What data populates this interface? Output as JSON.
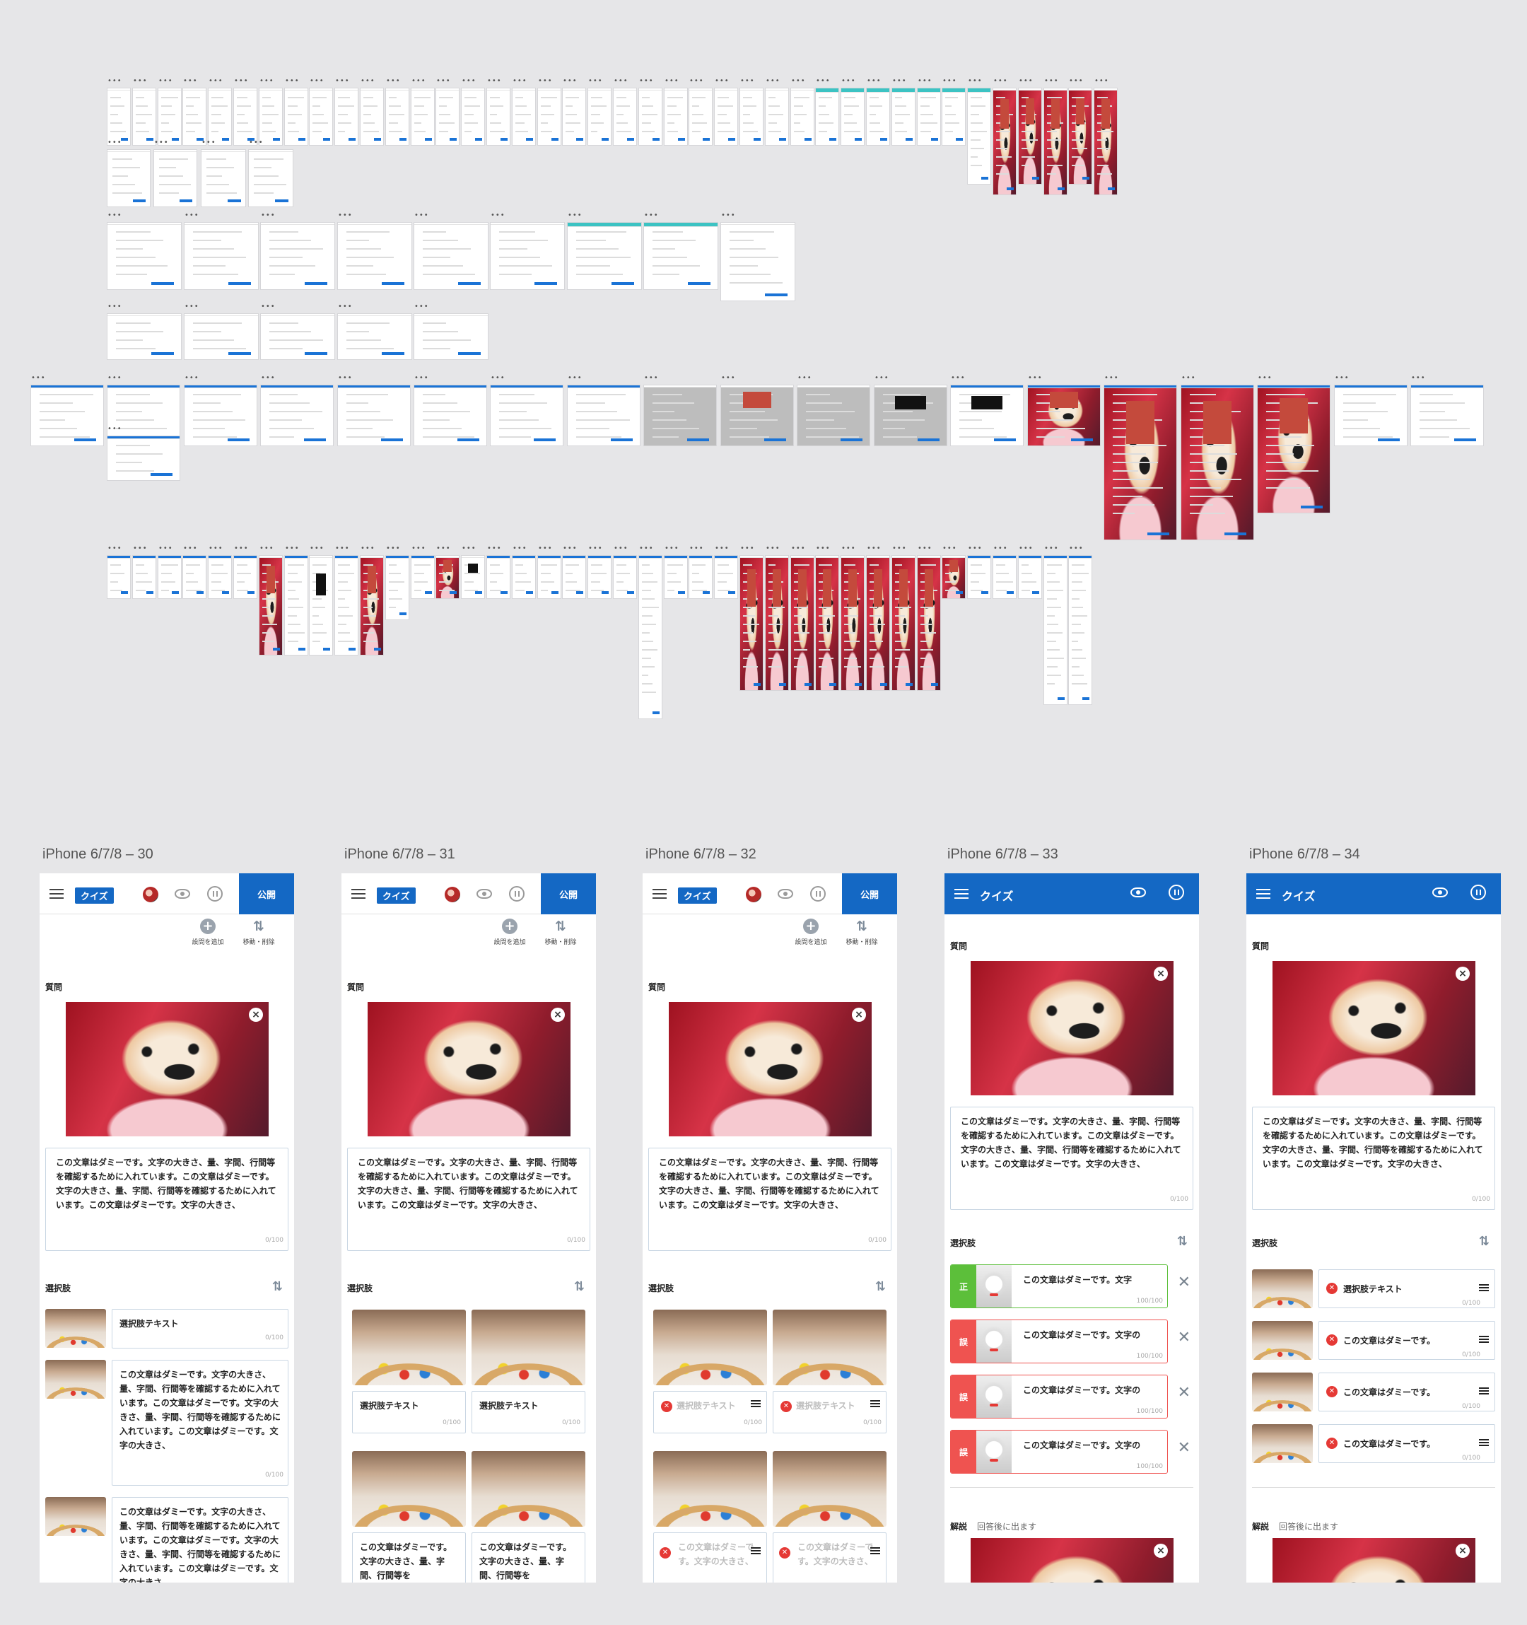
{
  "canvas": {
    "background": "#e6e6e8",
    "more_dots": "•••"
  },
  "frames": [
    {
      "title": "iPhone 6/7/8 – 30",
      "header": {
        "tag": "クイズ",
        "publish": "公開"
      },
      "tools": {
        "add": "設問を追加",
        "move": "移動・削除"
      },
      "question_label": "質問",
      "question_text": "この文章はダミーです。文字の大きさ、量、字間、行間等を確認するために入れています。この文章はダミーです。文字の大きさ、量、字間、行間等を確認するために入れています。この文章はダミーです。文字の大きさ、",
      "counter": "0/100",
      "choices_label": "選択肢",
      "choices": [
        {
          "text": "選択肢テキスト",
          "counter": "0/100"
        },
        {
          "text": "この文章はダミーです。文字の大きさ、量、字間、行間等を確認するために入れています。この文章はダミーです。文字の大きさ、量、字間、行間等を確認するために入れています。この文章はダミーです。文字の大きさ、",
          "counter": "0/100"
        },
        {
          "text": "この文章はダミーです。文字の大きさ、量、字間、行間等を確認するために入れています。この文章はダミーです。文字の大きさ、量、字間、行間等を確認するために入れています。この文章はダミーです。文字の大きさ、",
          "counter": ""
        }
      ]
    },
    {
      "title": "iPhone 6/7/8 – 31",
      "header": {
        "tag": "クイズ",
        "publish": "公開"
      },
      "tools": {
        "add": "設問を追加",
        "move": "移動・削除"
      },
      "question_label": "質問",
      "question_text": "この文章はダミーです。文字の大きさ、量、字間、行間等を確認するために入れています。この文章はダミーです。文字の大きさ、量、字間、行間等を確認するために入れています。この文章はダミーです。文字の大きさ、",
      "counter": "0/100",
      "choices_label": "選択肢",
      "grid": [
        {
          "text": "選択肢テキスト",
          "counter": "0/100"
        },
        {
          "text": "選択肢テキスト",
          "counter": "0/100"
        },
        {
          "text": "この文章はダミーです。文字の大きさ、量、字間、行間等を",
          "counter": ""
        },
        {
          "text": "この文章はダミーです。文字の大きさ、量、字間、行間等を",
          "counter": ""
        }
      ]
    },
    {
      "title": "iPhone 6/7/8 – 32",
      "header": {
        "tag": "クイズ",
        "publish": "公開"
      },
      "tools": {
        "add": "設問を追加",
        "move": "移動・削除"
      },
      "question_label": "質問",
      "question_text": "この文章はダミーです。文字の大きさ、量、字間、行間等を確認するために入れています。この文章はダミーです。文字の大きさ、量、字間、行間等を確認するために入れています。この文章はダミーです。文字の大きさ、",
      "counter": "0/100",
      "choices_label": "選択肢",
      "grid": [
        {
          "text": "選択肢テキスト",
          "counter": "0/100"
        },
        {
          "text": "選択肢テキスト",
          "counter": "0/100"
        },
        {
          "text": "この文章はダミーです。文字の大きさ、",
          "counter": ""
        },
        {
          "text": "この文章はダミーです。文字の大きさ、",
          "counter": ""
        }
      ]
    },
    {
      "title": "iPhone 6/7/8 – 33",
      "header": {
        "title": "クイズ"
      },
      "question_label": "質問",
      "question_text": "この文章はダミーです。文字の大きさ、量、字間、行間等を確認するために入れています。この文章はダミーです。文字の大きさ、量、字間、行間等を確認するために入れています。この文章はダミーです。文字の大きさ、",
      "counter": "0/100",
      "choices_label": "選択肢",
      "answers": [
        {
          "mark": "正",
          "text": "この文章はダミーです。文字",
          "counter": "100/100",
          "status": "correct"
        },
        {
          "mark": "誤",
          "text": "この文章はダミーです。文字の",
          "counter": "100/100",
          "status": "wrong"
        },
        {
          "mark": "誤",
          "text": "この文章はダミーです。文字の",
          "counter": "100/100",
          "status": "wrong"
        },
        {
          "mark": "誤",
          "text": "この文章はダミーです。文字の",
          "counter": "100/100",
          "status": "wrong"
        }
      ],
      "explain_label": "解説",
      "explain_sub": "回答後に出ます"
    },
    {
      "title": "iPhone 6/7/8 – 34",
      "header": {
        "title": "クイズ"
      },
      "question_label": "質問",
      "question_text": "この文章はダミーです。文字の大きさ、量、字間、行間等を確認するために入れています。この文章はダミーです。文字の大きさ、量、字間、行間等を確認するために入れています。この文章はダミーです。文字の大きさ、",
      "counter": "0/100",
      "choices_label": "選択肢",
      "rows": [
        {
          "text": "選択肢テキスト",
          "counter": "0/100"
        },
        {
          "text": "この文章はダミーです。",
          "counter": "0/100"
        },
        {
          "text": "この文章はダミーです。",
          "counter": "0/100"
        },
        {
          "text": "この文章はダミーです。",
          "counter": "0/100"
        }
      ],
      "explain_label": "解説",
      "explain_sub": "回答後に出ます"
    }
  ]
}
